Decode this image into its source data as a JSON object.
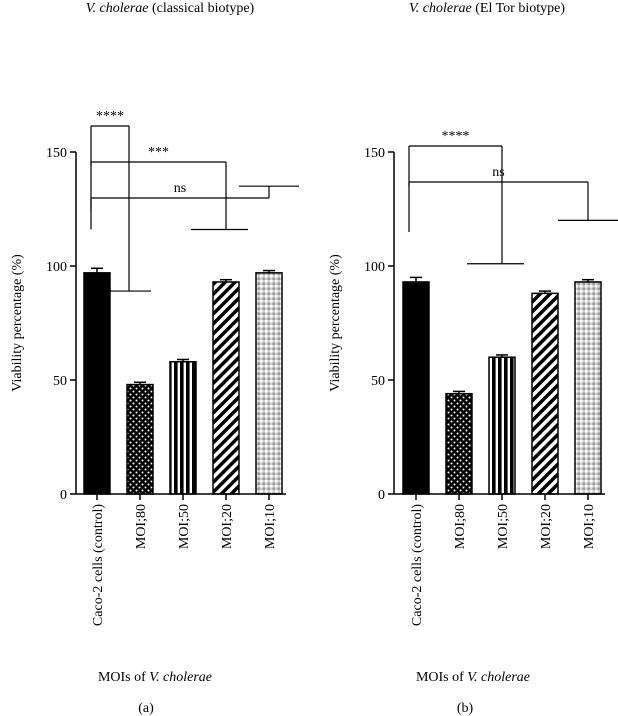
{
  "figure": {
    "panels": [
      "(a)",
      "(b)"
    ]
  },
  "chart_data": [
    {
      "type": "bar",
      "panel_label": "(a)",
      "title_italic": "V. cholerae",
      "title_rest": " (classical biotype)",
      "ylabel": "Viability percentage (%)",
      "xlabel_prefix": "MOIs of ",
      "xlabel_italic": "V. cholerae",
      "ylim": [
        0,
        150
      ],
      "yticks": [
        "0",
        "50",
        "100",
        "150"
      ],
      "ytick_values": [
        0,
        50,
        100,
        150
      ],
      "categories": [
        "Caco-2 cells (control)",
        "MOI;80",
        "MOI;50",
        "MOI;20",
        "MOI;10"
      ],
      "values": [
        97,
        48,
        58,
        93,
        97
      ],
      "errors": [
        2,
        1,
        1,
        1,
        1
      ],
      "patterns": [
        "solid",
        "dots",
        "vlines",
        "diagonal",
        "checker"
      ],
      "significance": [
        {
          "label": "****",
          "from": 0,
          "to": 1,
          "y": 126,
          "drop_to": 89
        },
        {
          "label": "***",
          "from": 0,
          "to": 3,
          "y": 162,
          "drop_to": 116
        },
        {
          "label": "ns",
          "from": 0,
          "to": 4,
          "y": 198,
          "drop_to": 135
        }
      ]
    },
    {
      "type": "bar",
      "panel_label": "(b)",
      "title_italic": "V. cholerae",
      "title_rest": " (El Tor biotype)",
      "ylabel": "Viability percentage (%)",
      "xlabel_prefix": "MOIs of ",
      "xlabel_italic": "V. cholerae",
      "ylim": [
        0,
        150
      ],
      "yticks": [
        "0",
        "50",
        "100",
        "150"
      ],
      "ytick_values": [
        0,
        50,
        100,
        150
      ],
      "categories": [
        "Caco-2 cells (control)",
        "MOI;80",
        "MOI;50",
        "MOI;20",
        "MOI;10"
      ],
      "values": [
        93,
        44,
        60,
        88,
        93
      ],
      "errors": [
        2,
        1,
        1,
        1,
        1
      ],
      "patterns": [
        "solid",
        "dots",
        "vlines",
        "diagonal",
        "checker"
      ],
      "significance": [
        {
          "label": "****",
          "from": 0,
          "to": 2,
          "y": 146,
          "drop_to": 101
        },
        {
          "label": "ns",
          "from": 0,
          "to": 4,
          "y": 182,
          "drop_to": 120
        }
      ]
    }
  ]
}
